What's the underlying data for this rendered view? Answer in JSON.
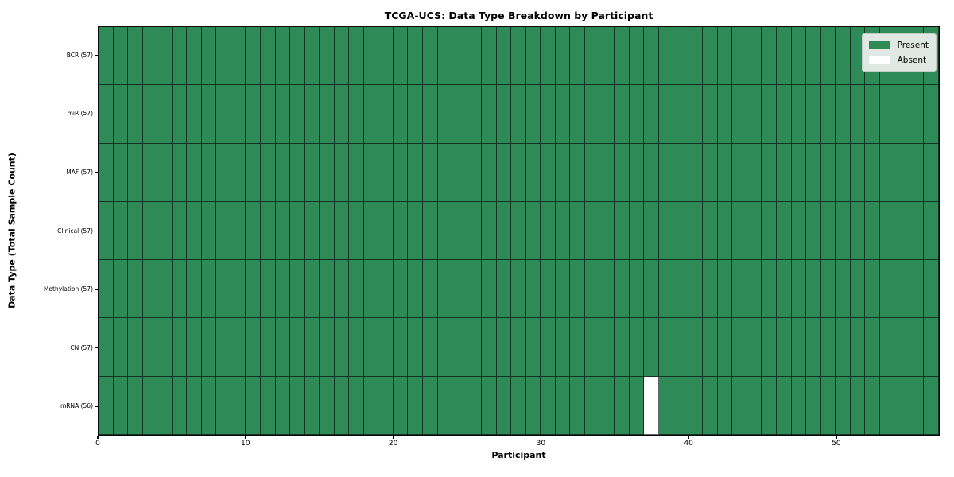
{
  "chart_data": {
    "type": "heatmap",
    "title": "TCGA-UCS: Data Type Breakdown by Participant",
    "xlabel": "Participant",
    "ylabel": "Data Type (Total Sample Count)",
    "n_participants": 57,
    "x_ticks": [
      0,
      10,
      20,
      30,
      40,
      50
    ],
    "rows": [
      {
        "label": "BCR (57)",
        "total": 57,
        "absent_participants": []
      },
      {
        "label": "miR (57)",
        "total": 57,
        "absent_participants": []
      },
      {
        "label": "MAF (57)",
        "total": 57,
        "absent_participants": []
      },
      {
        "label": "Clinical (57)",
        "total": 57,
        "absent_participants": []
      },
      {
        "label": "Methylation (57)",
        "total": 57,
        "absent_participants": []
      },
      {
        "label": "CN (57)",
        "total": 57,
        "absent_participants": []
      },
      {
        "label": "mRNA (56)",
        "total": 56,
        "absent_participants": [
          37
        ]
      }
    ],
    "legend": {
      "position": "upper right",
      "entries": [
        {
          "label": "Present",
          "color": "#2e8b57"
        },
        {
          "label": "Absent",
          "color": "#ffffff"
        }
      ]
    },
    "colors": {
      "present": "#2e8b57",
      "absent": "#ffffff",
      "axis": "#0a0a0a",
      "legend_background": "#dfe8e2"
    }
  }
}
